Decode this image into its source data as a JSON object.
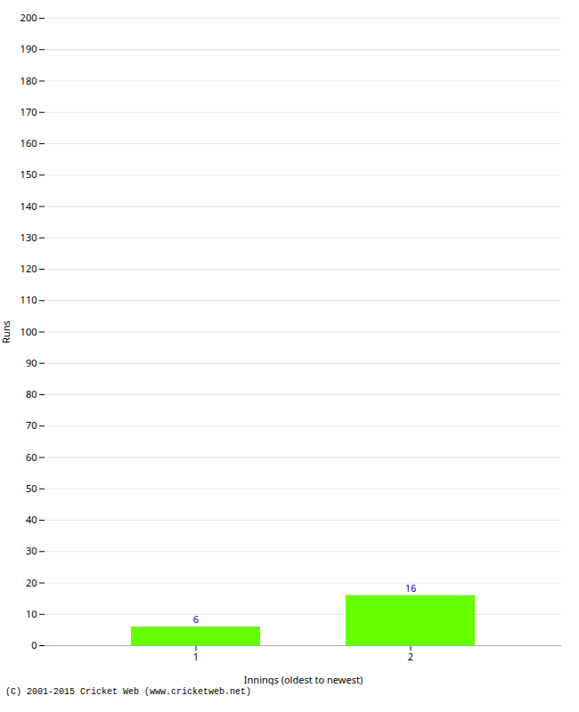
{
  "chart_data": {
    "type": "bar",
    "categories": [
      1,
      2
    ],
    "values": [
      6,
      16
    ],
    "color": "#66ff00",
    "xlabel": "Innings (oldest to newest)",
    "ylabel": "Runs",
    "ylim": [
      0,
      200
    ],
    "yticks": [
      0,
      10,
      20,
      30,
      40,
      50,
      60,
      70,
      80,
      90,
      100,
      110,
      120,
      130,
      140,
      150,
      160,
      170,
      180,
      190,
      200
    ],
    "grid": true,
    "data_labels": true,
    "annotations": [
      "(C) 2001-2015 Cricket Web (www.cricketweb.net)"
    ]
  }
}
